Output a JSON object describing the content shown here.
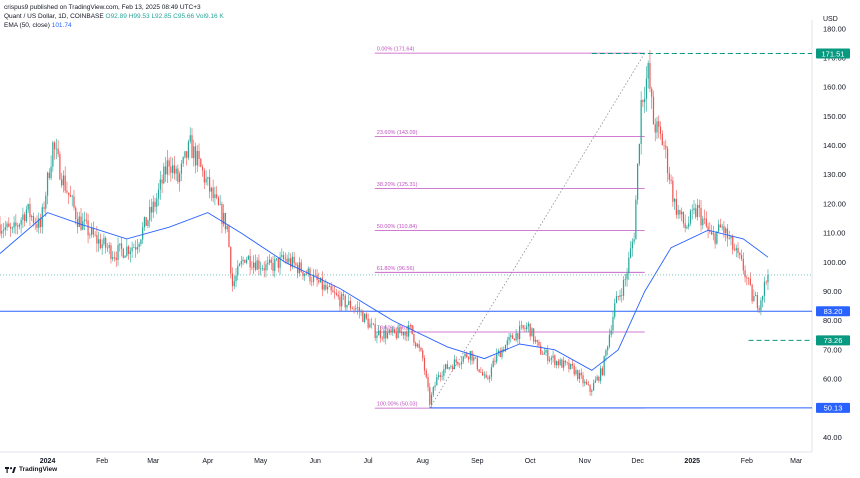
{
  "publisher_line": "crispus9 published on TradingView.com, Feb 13, 2025 08:49 UTC+3",
  "header": {
    "pair": "Quant / US Dollar, 1D, COINBASE",
    "o": "O92.89",
    "h": "H99.53",
    "l": "L92.85",
    "c": "C95.66",
    "vol": "Vol9.16 K",
    "ema": "EMA (50, close)",
    "ema_value": "101.74"
  },
  "footer": {
    "brand": "TradingView",
    "logo_icon": "tradingview-logo-icon"
  },
  "colors": {
    "up": "#26a69a",
    "down": "#ef5350",
    "ema": "#2962ff",
    "fib": "#c050c0",
    "support": "#2962ff",
    "teal_label": "#089981",
    "blue_label": "#2962ff"
  },
  "chart_data": {
    "type": "candlestick",
    "currency": "USD",
    "y_ticks": [
      40,
      50,
      60,
      70,
      80,
      90,
      100,
      110,
      120,
      130,
      140,
      150,
      160,
      170,
      180
    ],
    "y_tick_labels": [
      "40.00",
      "50.00",
      "60.00",
      "70.00",
      "80.00",
      "90.00",
      "100.00",
      "110.00",
      "120.00",
      "130.00",
      "140.00",
      "150.00",
      "160.00",
      "170.00",
      "180.00"
    ],
    "ylim": [
      35,
      183
    ],
    "x_range": [
      "2023-12-05",
      "2025-03-10"
    ],
    "x_ticks": [
      {
        "date": "2024-01-01",
        "label": "2024",
        "bold": true
      },
      {
        "date": "2024-02-01",
        "label": "Feb"
      },
      {
        "date": "2024-03-01",
        "label": "Mar"
      },
      {
        "date": "2024-04-01",
        "label": "Apr"
      },
      {
        "date": "2024-05-01",
        "label": "May"
      },
      {
        "date": "2024-06-01",
        "label": "Jun"
      },
      {
        "date": "2024-07-01",
        "label": "Jul"
      },
      {
        "date": "2024-08-01",
        "label": "Aug"
      },
      {
        "date": "2024-09-01",
        "label": "Sep"
      },
      {
        "date": "2024-10-01",
        "label": "Oct"
      },
      {
        "date": "2024-11-01",
        "label": "Nov"
      },
      {
        "date": "2024-12-01",
        "label": "Dec"
      },
      {
        "date": "2025-01-01",
        "label": "2025",
        "bold": true
      },
      {
        "date": "2025-02-01",
        "label": "Feb"
      },
      {
        "date": "2025-03-01",
        "label": "Mar"
      }
    ],
    "price_path": [
      {
        "date": "2023-12-05",
        "price": 113
      },
      {
        "date": "2023-12-12",
        "price": 110
      },
      {
        "date": "2023-12-20",
        "price": 118
      },
      {
        "date": "2023-12-28",
        "price": 112
      },
      {
        "date": "2024-01-04",
        "price": 140
      },
      {
        "date": "2024-01-10",
        "price": 128
      },
      {
        "date": "2024-01-18",
        "price": 115
      },
      {
        "date": "2024-01-28",
        "price": 108
      },
      {
        "date": "2024-02-08",
        "price": 103
      },
      {
        "date": "2024-02-20",
        "price": 106
      },
      {
        "date": "2024-03-02",
        "price": 120
      },
      {
        "date": "2024-03-10",
        "price": 135
      },
      {
        "date": "2024-03-15",
        "price": 128
      },
      {
        "date": "2024-03-22",
        "price": 140
      },
      {
        "date": "2024-03-28",
        "price": 132
      },
      {
        "date": "2024-04-04",
        "price": 122
      },
      {
        "date": "2024-04-12",
        "price": 112
      },
      {
        "date": "2024-04-15",
        "price": 92
      },
      {
        "date": "2024-04-22",
        "price": 102
      },
      {
        "date": "2024-05-05",
        "price": 98
      },
      {
        "date": "2024-05-15",
        "price": 101
      },
      {
        "date": "2024-05-28",
        "price": 96
      },
      {
        "date": "2024-06-08",
        "price": 90
      },
      {
        "date": "2024-06-18",
        "price": 86
      },
      {
        "date": "2024-06-25",
        "price": 84
      },
      {
        "date": "2024-07-05",
        "price": 76
      },
      {
        "date": "2024-07-15",
        "price": 75
      },
      {
        "date": "2024-07-25",
        "price": 77
      },
      {
        "date": "2024-08-01",
        "price": 67
      },
      {
        "date": "2024-08-05",
        "price": 52
      },
      {
        "date": "2024-08-10",
        "price": 62
      },
      {
        "date": "2024-08-20",
        "price": 66
      },
      {
        "date": "2024-08-28",
        "price": 69
      },
      {
        "date": "2024-09-06",
        "price": 59
      },
      {
        "date": "2024-09-12",
        "price": 68
      },
      {
        "date": "2024-09-22",
        "price": 75
      },
      {
        "date": "2024-09-30",
        "price": 78
      },
      {
        "date": "2024-10-06",
        "price": 70
      },
      {
        "date": "2024-10-16",
        "price": 66
      },
      {
        "date": "2024-10-26",
        "price": 63
      },
      {
        "date": "2024-11-04",
        "price": 56
      },
      {
        "date": "2024-11-11",
        "price": 63
      },
      {
        "date": "2024-11-18",
        "price": 85
      },
      {
        "date": "2024-11-24",
        "price": 94
      },
      {
        "date": "2024-11-29",
        "price": 110
      },
      {
        "date": "2024-12-03",
        "price": 155
      },
      {
        "date": "2024-12-07",
        "price": 165
      },
      {
        "date": "2024-12-10",
        "price": 148
      },
      {
        "date": "2024-12-16",
        "price": 140
      },
      {
        "date": "2024-12-22",
        "price": 120
      },
      {
        "date": "2024-12-28",
        "price": 112
      },
      {
        "date": "2025-01-04",
        "price": 118
      },
      {
        "date": "2025-01-12",
        "price": 108
      },
      {
        "date": "2025-01-18",
        "price": 112
      },
      {
        "date": "2025-01-24",
        "price": 105
      },
      {
        "date": "2025-01-30",
        "price": 98
      },
      {
        "date": "2025-02-04",
        "price": 88
      },
      {
        "date": "2025-02-08",
        "price": 86
      },
      {
        "date": "2025-02-13",
        "price": 95.66
      }
    ],
    "ema_path": [
      {
        "date": "2023-12-05",
        "price": 103
      },
      {
        "date": "2024-01-01",
        "price": 117
      },
      {
        "date": "2024-01-20",
        "price": 113
      },
      {
        "date": "2024-02-15",
        "price": 108
      },
      {
        "date": "2024-03-10",
        "price": 112
      },
      {
        "date": "2024-04-01",
        "price": 117
      },
      {
        "date": "2024-04-20",
        "price": 110
      },
      {
        "date": "2024-05-15",
        "price": 100
      },
      {
        "date": "2024-06-15",
        "price": 91
      },
      {
        "date": "2024-07-15",
        "price": 80
      },
      {
        "date": "2024-08-15",
        "price": 71
      },
      {
        "date": "2024-09-05",
        "price": 67
      },
      {
        "date": "2024-09-25",
        "price": 72
      },
      {
        "date": "2024-10-15",
        "price": 70
      },
      {
        "date": "2024-11-05",
        "price": 63
      },
      {
        "date": "2024-11-20",
        "price": 70
      },
      {
        "date": "2024-12-05",
        "price": 90
      },
      {
        "date": "2024-12-20",
        "price": 105
      },
      {
        "date": "2025-01-10",
        "price": 111
      },
      {
        "date": "2025-01-30",
        "price": 108
      },
      {
        "date": "2025-02-13",
        "price": 101.74
      }
    ],
    "fib_start": "2024-08-05",
    "fib_end": "2024-12-05",
    "fib_levels": [
      {
        "label": "0.00% (171.64)",
        "price": 171.64
      },
      {
        "label": "23.60% (143.09)",
        "price": 143.09
      },
      {
        "label": "38.20% (125.31)",
        "price": 125.31
      },
      {
        "label": "50.00% (110.84)",
        "price": 110.84
      },
      {
        "label": "61.80% (96.56)",
        "price": 96.56
      },
      {
        "label": "78.60% (76.10)",
        "price": 76.1
      },
      {
        "label": "100.00% (50.03)",
        "price": 50.03
      }
    ],
    "trendline": {
      "from": {
        "date": "2024-08-05",
        "price": 50.03
      },
      "to": {
        "date": "2024-12-05",
        "price": 171.64
      }
    },
    "horizontal_lines": [
      {
        "price": 83.2,
        "label": "83.20",
        "style": "solid",
        "color": "#2962ff",
        "from": "2023-12-05"
      },
      {
        "price": 171.51,
        "label": "171.51",
        "style": "dashed",
        "color": "#089981",
        "from": "2024-11-05"
      },
      {
        "price": 73.26,
        "label": "73.26",
        "style": "dashed",
        "color": "#089981",
        "from": "2025-02-02"
      },
      {
        "price": 50.13,
        "label": "50.13",
        "style": "solid",
        "color": "#2962ff",
        "from": "2024-08-05"
      }
    ],
    "last_price": 95.66
  }
}
